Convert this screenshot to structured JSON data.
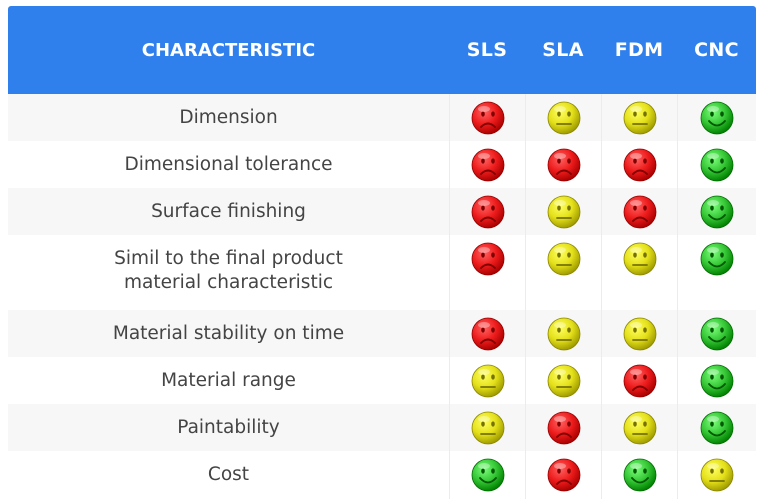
{
  "header": {
    "characteristic": "CHARACTERISTIC",
    "methods": [
      "SLS",
      "SLA",
      "FDM",
      "CNC"
    ]
  },
  "colors": {
    "header_bg": "#2f80ed",
    "sad": "#ee1c1c",
    "neutral": "#e4e01a",
    "happy": "#35c635"
  },
  "rows": [
    {
      "label_lines": [
        "Dimension"
      ],
      "ratings": [
        "sad",
        "neutral",
        "neutral",
        "happy"
      ]
    },
    {
      "label_lines": [
        "Dimensional tolerance"
      ],
      "ratings": [
        "sad",
        "sad",
        "sad",
        "happy"
      ]
    },
    {
      "label_lines": [
        "Surface finishing"
      ],
      "ratings": [
        "sad",
        "neutral",
        "sad",
        "happy"
      ]
    },
    {
      "label_lines": [
        "Simil to the final product",
        "material characteristic"
      ],
      "ratings": [
        "sad",
        "neutral",
        "neutral",
        "happy"
      ]
    },
    {
      "label_lines": [
        "Material stability on time"
      ],
      "ratings": [
        "sad",
        "neutral",
        "neutral",
        "happy"
      ]
    },
    {
      "label_lines": [
        "Material range"
      ],
      "ratings": [
        "neutral",
        "neutral",
        "sad",
        "happy"
      ]
    },
    {
      "label_lines": [
        "Paintability"
      ],
      "ratings": [
        "neutral",
        "sad",
        "neutral",
        "happy"
      ]
    },
    {
      "label_lines": [
        "Cost"
      ],
      "ratings": [
        "happy",
        "sad",
        "happy",
        "neutral"
      ]
    }
  ]
}
